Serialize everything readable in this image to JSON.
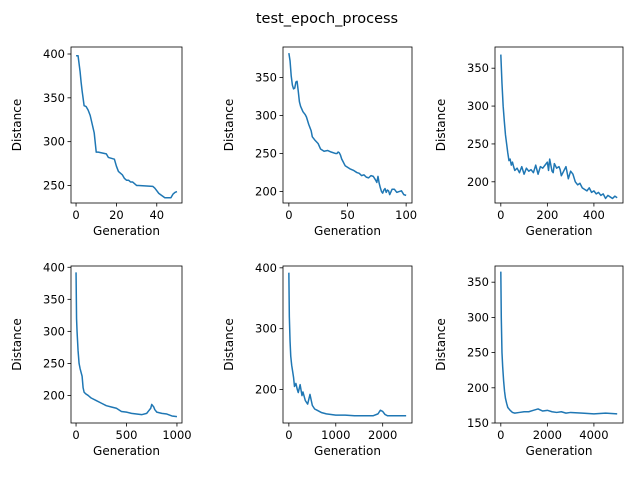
{
  "figure": {
    "suptitle": "test_epoch_process",
    "line_color": "#1f77b4"
  },
  "chart_data": [
    {
      "type": "line",
      "title": "",
      "xlabel": "Generation",
      "ylabel": "Distance",
      "xlim": [
        -2.5,
        52.5
      ],
      "ylim": [
        230,
        408
      ],
      "xticks": [
        0,
        20,
        40
      ],
      "yticks": [
        250,
        300,
        350,
        400
      ],
      "grid": false,
      "series": [
        {
          "x": [
            0,
            1,
            2,
            2.5,
            3,
            4,
            5,
            6,
            7,
            8,
            9,
            10,
            11,
            15,
            16,
            19,
            20,
            21,
            22,
            23,
            24,
            25,
            26,
            27,
            28,
            29,
            30,
            31,
            38,
            39,
            40,
            41,
            44,
            45,
            47,
            48,
            49,
            50
          ],
          "y": [
            398,
            398,
            380,
            368,
            358,
            341,
            340,
            336,
            330,
            320,
            310,
            288,
            288,
            286,
            282,
            280,
            272,
            266,
            264,
            262,
            258,
            256,
            256,
            254,
            254,
            252,
            250,
            250,
            249,
            247,
            244,
            241,
            236,
            236,
            236,
            240,
            242,
            243
          ]
        }
      ]
    },
    {
      "type": "line",
      "title": "",
      "xlabel": "Generation",
      "ylabel": "Distance",
      "xlim": [
        -5,
        105
      ],
      "ylim": [
        185,
        390
      ],
      "xticks": [
        0,
        50,
        100
      ],
      "yticks": [
        200,
        250,
        300,
        350
      ],
      "grid": false,
      "series": [
        {
          "x": [
            0,
            1,
            2,
            3,
            4,
            5,
            6,
            7,
            8,
            9,
            10,
            12,
            14,
            15,
            17,
            19,
            20,
            22,
            25,
            27,
            30,
            33,
            36,
            40,
            41,
            42,
            43,
            44,
            45,
            46,
            47,
            48,
            49,
            50,
            52,
            55,
            58,
            60,
            62,
            64,
            66,
            68,
            70,
            72,
            74,
            75,
            76,
            77,
            78,
            79,
            80,
            81,
            82,
            83,
            84,
            85,
            86,
            88,
            90,
            92,
            94,
            96,
            98,
            100
          ],
          "y": [
            382,
            372,
            352,
            340,
            335,
            336,
            344,
            345,
            332,
            318,
            312,
            305,
            301,
            298,
            288,
            280,
            272,
            268,
            263,
            256,
            253,
            254,
            252,
            250,
            250,
            252,
            251,
            248,
            243,
            240,
            237,
            234,
            233,
            232,
            230,
            228,
            225,
            224,
            221,
            222,
            219,
            218,
            221,
            220,
            215,
            212,
            220,
            211,
            205,
            200,
            198,
            202,
            204,
            199,
            202,
            201,
            196,
            203,
            203,
            199,
            200,
            201,
            196,
            195
          ]
        }
      ]
    },
    {
      "type": "line",
      "title": "",
      "xlabel": "Generation",
      "ylabel": "Distance",
      "xlim": [
        -25,
        525
      ],
      "ylim": [
        172,
        378
      ],
      "xticks": [
        0,
        200,
        400
      ],
      "yticks": [
        200,
        250,
        300,
        350
      ],
      "grid": false,
      "series": [
        {
          "x": [
            0,
            5,
            10,
            15,
            20,
            25,
            30,
            35,
            40,
            45,
            50,
            55,
            60,
            70,
            80,
            90,
            100,
            110,
            120,
            130,
            140,
            150,
            160,
            170,
            180,
            190,
            200,
            205,
            210,
            215,
            220,
            225,
            230,
            240,
            250,
            255,
            260,
            270,
            280,
            290,
            300,
            310,
            320,
            330,
            340,
            350,
            360,
            370,
            380,
            390,
            400,
            410,
            420,
            430,
            440,
            450,
            460,
            470,
            480,
            490,
            500
          ],
          "y": [
            368,
            330,
            300,
            280,
            262,
            250,
            238,
            228,
            230,
            222,
            226,
            220,
            215,
            218,
            212,
            220,
            210,
            218,
            214,
            216,
            212,
            222,
            210,
            220,
            218,
            222,
            226,
            215,
            230,
            222,
            214,
            212,
            224,
            218,
            220,
            216,
            208,
            214,
            220,
            204,
            214,
            210,
            200,
            196,
            198,
            192,
            190,
            188,
            192,
            186,
            188,
            184,
            186,
            182,
            184,
            178,
            182,
            180,
            178,
            181,
            179
          ]
        }
      ]
    },
    {
      "type": "line",
      "title": "",
      "xlabel": "Generation",
      "ylabel": "Distance",
      "xlim": [
        -50,
        1050
      ],
      "ylim": [
        157,
        402
      ],
      "xticks": [
        0,
        500,
        1000
      ],
      "yticks": [
        200,
        250,
        300,
        350,
        400
      ],
      "grid": false,
      "series": [
        {
          "x": [
            0,
            5,
            10,
            15,
            20,
            30,
            40,
            50,
            60,
            70,
            80,
            100,
            120,
            150,
            200,
            250,
            300,
            350,
            400,
            450,
            500,
            550,
            600,
            650,
            700,
            720,
            740,
            750,
            760,
            770,
            780,
            790,
            800,
            850,
            900,
            950,
            1000
          ],
          "y": [
            392,
            320,
            300,
            285,
            270,
            250,
            242,
            236,
            230,
            212,
            205,
            202,
            200,
            196,
            192,
            188,
            184,
            182,
            180,
            175,
            174,
            172,
            171,
            170,
            172,
            176,
            180,
            186,
            184,
            182,
            178,
            176,
            174,
            172,
            171,
            168,
            167
          ]
        }
      ]
    },
    {
      "type": "line",
      "title": "",
      "xlabel": "Generation",
      "ylabel": "Distance",
      "xlim": [
        -125,
        2625
      ],
      "ylim": [
        145,
        403
      ],
      "xticks": [
        0,
        1000,
        2000
      ],
      "yticks": [
        200,
        300,
        400
      ],
      "grid": false,
      "series": [
        {
          "x": [
            0,
            10,
            25,
            40,
            60,
            80,
            100,
            120,
            150,
            180,
            200,
            240,
            280,
            300,
            350,
            400,
            450,
            500,
            550,
            600,
            700,
            800,
            1000,
            1200,
            1400,
            1600,
            1800,
            1900,
            1950,
            2000,
            2050,
            2100,
            2300,
            2500
          ],
          "y": [
            392,
            320,
            280,
            255,
            240,
            230,
            220,
            205,
            210,
            200,
            195,
            208,
            190,
            196,
            182,
            176,
            192,
            174,
            168,
            166,
            162,
            160,
            158,
            158,
            157,
            157,
            157,
            160,
            166,
            164,
            159,
            157,
            157,
            157
          ]
        }
      ]
    },
    {
      "type": "line",
      "title": "",
      "xlabel": "Generation",
      "ylabel": "Distance",
      "xlim": [
        -250,
        5250
      ],
      "ylim": [
        150,
        373
      ],
      "xticks": [
        0,
        2000,
        4000
      ],
      "yticks": [
        150,
        200,
        250,
        300,
        350
      ],
      "grid": false,
      "series": [
        {
          "x": [
            0,
            20,
            50,
            80,
            120,
            160,
            200,
            250,
            300,
            400,
            500,
            600,
            800,
            1000,
            1200,
            1400,
            1600,
            1800,
            2000,
            2200,
            2400,
            2600,
            2800,
            3000,
            3500,
            4000,
            4500,
            5000
          ],
          "y": [
            365,
            300,
            250,
            230,
            210,
            195,
            185,
            178,
            172,
            168,
            165,
            164,
            165,
            166,
            166,
            168,
            170,
            167,
            168,
            166,
            165,
            166,
            164,
            165,
            164,
            163,
            164,
            163
          ]
        }
      ]
    }
  ]
}
